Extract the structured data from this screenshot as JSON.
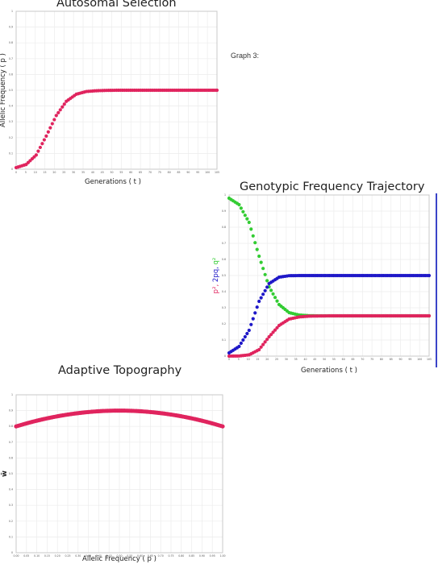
{
  "labels": {
    "graph3": "Graph 3:"
  },
  "colors": {
    "red": "#e0245e",
    "green": "#33cc33",
    "blue": "#1f18c8"
  },
  "chart_data": [
    {
      "id": "autosomal",
      "type": "scatter",
      "title": "Autosomal Selection",
      "xlabel": "Generations ( t )",
      "ylabel": "Allelic Frequency ( p )",
      "xlim": [
        0,
        100
      ],
      "ylim": [
        0,
        1
      ],
      "xticks": [
        "0",
        "5",
        "10",
        "15",
        "20",
        "25",
        "30",
        "35",
        "40",
        "45",
        "50",
        "55",
        "60",
        "65",
        "70",
        "75",
        "80",
        "85",
        "90",
        "95",
        "100",
        "105"
      ],
      "yticks": [
        "0",
        "0.1",
        "0.2",
        "0.3",
        "0.4",
        "0.5",
        "0.6",
        "0.7",
        "0.8",
        "0.9",
        "1"
      ],
      "grid": true,
      "series": [
        {
          "color": "#e0245e",
          "x": [
            0,
            5,
            10,
            15,
            20,
            25,
            30,
            35,
            40,
            45,
            50,
            60,
            70,
            80,
            90,
            100
          ],
          "y": [
            0.01,
            0.03,
            0.09,
            0.21,
            0.34,
            0.43,
            0.475,
            0.492,
            0.497,
            0.499,
            0.5,
            0.5,
            0.5,
            0.5,
            0.5,
            0.5
          ]
        }
      ]
    },
    {
      "id": "genotypic",
      "type": "scatter",
      "title": "Genotypic Frequency Trajectory",
      "xlabel": "Generations ( t )",
      "ylabel_parts": [
        "p²,",
        "2pq,",
        "q²"
      ],
      "xlim": [
        0,
        100
      ],
      "ylim": [
        0,
        1
      ],
      "xticks": [
        "0",
        "5",
        "10",
        "15",
        "20",
        "25",
        "30",
        "35",
        "40",
        "45",
        "50",
        "55",
        "60",
        "65",
        "70",
        "75",
        "80",
        "85",
        "90",
        "95",
        "100",
        "105"
      ],
      "yticks": [
        "0",
        "0.1",
        "0.2",
        "0.3",
        "0.4",
        "0.5",
        "0.6",
        "0.7",
        "0.8",
        "0.9",
        "1"
      ],
      "grid": true,
      "series": [
        {
          "color": "#33cc33",
          "x": [
            0,
            5,
            10,
            15,
            20,
            25,
            30,
            35,
            40,
            45,
            50,
            60,
            70,
            80,
            90,
            100
          ],
          "y": [
            0.98,
            0.94,
            0.83,
            0.62,
            0.43,
            0.32,
            0.27,
            0.255,
            0.251,
            0.25,
            0.25,
            0.25,
            0.25,
            0.25,
            0.25,
            0.25
          ]
        },
        {
          "color": "#1f18c8",
          "x": [
            0,
            5,
            10,
            15,
            20,
            25,
            30,
            35,
            40,
            45,
            50,
            60,
            70,
            80,
            90,
            100
          ],
          "y": [
            0.02,
            0.06,
            0.16,
            0.34,
            0.45,
            0.49,
            0.499,
            0.5,
            0.5,
            0.5,
            0.5,
            0.5,
            0.5,
            0.5,
            0.5,
            0.5
          ]
        },
        {
          "color": "#e0245e",
          "x": [
            0,
            5,
            10,
            15,
            20,
            25,
            30,
            35,
            40,
            45,
            50,
            60,
            70,
            80,
            90,
            100
          ],
          "y": [
            0.0001,
            0.001,
            0.008,
            0.04,
            0.12,
            0.19,
            0.23,
            0.243,
            0.248,
            0.249,
            0.25,
            0.25,
            0.25,
            0.25,
            0.25,
            0.25
          ]
        }
      ]
    },
    {
      "id": "adaptive",
      "type": "scatter",
      "title": "Adaptive Topography",
      "xlabel": "Allelic Frequency ( p )",
      "ylabel": "w̄",
      "xlim": [
        0,
        1
      ],
      "ylim": [
        0,
        1
      ],
      "xticks": [
        "0.00",
        "0.05",
        "0.10",
        "0.15",
        "0.20",
        "0.25",
        "0.30",
        "0.35",
        "0.40",
        "0.45",
        "0.50",
        "0.55",
        "0.60",
        "0.65",
        "0.70",
        "0.75",
        "0.80",
        "0.85",
        "0.90",
        "0.95",
        "1.00"
      ],
      "yticks": [
        "0",
        "0.1",
        "0.2",
        "0.3",
        "0.4",
        "0.5",
        "0.6",
        "0.7",
        "0.8",
        "0.9",
        "1"
      ],
      "grid": true,
      "series": [
        {
          "color": "#e0245e",
          "x": [
            0,
            0.1,
            0.2,
            0.3,
            0.4,
            0.5,
            0.6,
            0.7,
            0.8,
            0.9,
            1.0
          ],
          "y": [
            0.8,
            0.836,
            0.864,
            0.884,
            0.896,
            0.9,
            0.896,
            0.884,
            0.864,
            0.836,
            0.8
          ]
        }
      ]
    }
  ]
}
